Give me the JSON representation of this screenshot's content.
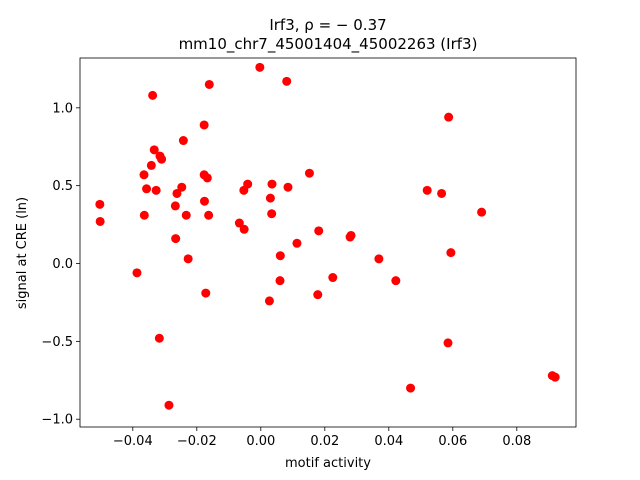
{
  "chart_data": {
    "type": "scatter",
    "title_line1": "Irf3, ρ = − 0.37",
    "title_line2": "mm10_chr7_45001404_45002263 (Irf3)",
    "xlabel": "motif activity",
    "ylabel": "signal at CRE (ln)",
    "xlim": [
      -0.0565,
      0.0985
    ],
    "ylim": [
      -1.05,
      1.32
    ],
    "x_ticks": [
      -0.04,
      -0.02,
      0.0,
      0.02,
      0.04,
      0.06,
      0.08
    ],
    "x_tick_labels": [
      "−0.04",
      "−0.02",
      "0.00",
      "0.02",
      "0.04",
      "0.06",
      "0.08"
    ],
    "y_ticks": [
      -1.0,
      -0.5,
      0.0,
      0.5,
      1.0
    ],
    "y_tick_labels": [
      "−1.0",
      "−0.5",
      "0.0",
      "0.5",
      "1.0"
    ],
    "grid": false,
    "legend": "none",
    "marker_color": "#ff0000",
    "series": [
      {
        "points": [
          [
            -0.0503,
            0.38
          ],
          [
            -0.0502,
            0.27
          ],
          [
            -0.0387,
            -0.06
          ],
          [
            -0.0365,
            0.57
          ],
          [
            -0.0364,
            0.31
          ],
          [
            -0.0357,
            0.48
          ],
          [
            -0.0338,
            1.08
          ],
          [
            -0.0342,
            0.63
          ],
          [
            -0.0333,
            0.73
          ],
          [
            -0.0327,
            0.47
          ],
          [
            -0.0315,
            0.69
          ],
          [
            -0.031,
            0.67
          ],
          [
            -0.0317,
            -0.48
          ],
          [
            -0.0287,
            -0.91
          ],
          [
            -0.0267,
            0.37
          ],
          [
            -0.0262,
            0.45
          ],
          [
            -0.0266,
            0.16
          ],
          [
            -0.0247,
            0.49
          ],
          [
            -0.0242,
            0.79
          ],
          [
            -0.0233,
            0.31
          ],
          [
            -0.0227,
            0.03
          ],
          [
            -0.0177,
            0.89
          ],
          [
            -0.0177,
            0.57
          ],
          [
            -0.0176,
            0.4
          ],
          [
            -0.0167,
            0.55
          ],
          [
            -0.0161,
            1.15
          ],
          [
            -0.0163,
            0.31
          ],
          [
            -0.0172,
            -0.19
          ],
          [
            -0.0067,
            0.26
          ],
          [
            -0.0053,
            0.47
          ],
          [
            -0.0052,
            0.22
          ],
          [
            -0.0041,
            0.51
          ],
          [
            -0.0003,
            1.26
          ],
          [
            0.003,
            0.42
          ],
          [
            0.0035,
            0.51
          ],
          [
            0.0034,
            0.32
          ],
          [
            0.0027,
            -0.24
          ],
          [
            0.0061,
            0.05
          ],
          [
            0.006,
            -0.11
          ],
          [
            0.0081,
            1.17
          ],
          [
            0.0085,
            0.49
          ],
          [
            0.0113,
            0.13
          ],
          [
            0.0152,
            0.58
          ],
          [
            0.0181,
            0.21
          ],
          [
            0.0178,
            -0.2
          ],
          [
            0.0225,
            -0.09
          ],
          [
            0.0279,
            0.17
          ],
          [
            0.0282,
            0.18
          ],
          [
            0.0369,
            0.03
          ],
          [
            0.0422,
            -0.11
          ],
          [
            0.0468,
            -0.8
          ],
          [
            0.052,
            0.47
          ],
          [
            0.0565,
            0.45
          ],
          [
            0.0585,
            -0.51
          ],
          [
            0.0587,
            0.94
          ],
          [
            0.0594,
            0.07
          ],
          [
            0.069,
            0.33
          ],
          [
            0.0911,
            -0.72
          ],
          [
            0.092,
            -0.73
          ]
        ]
      }
    ]
  }
}
